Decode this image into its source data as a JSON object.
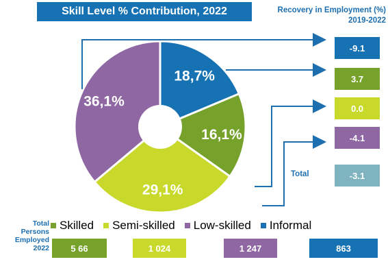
{
  "title": "Skill Level % Contribution, 2022",
  "recovery_title_line1": "Recovery in Employment (%)",
  "recovery_title_line2": "2019-2022",
  "total_label": "Total",
  "persons_label_lines": [
    "Total",
    "Persons",
    "Employed",
    "2022"
  ],
  "colors": {
    "informal": "#1672b3",
    "skilled": "#76a22b",
    "semi_skilled": "#c9d92b",
    "low_skilled": "#8f67a3",
    "total": "#7fb3bf",
    "title_bg": "#1672b3",
    "arrow": "#1d6fb0"
  },
  "chart_data": {
    "type": "pie",
    "donut": true,
    "title": "Skill Level % Contribution, 2022",
    "slices": [
      {
        "name": "Informal",
        "value": 18.7,
        "label": "18,7%",
        "color": "#1672b3"
      },
      {
        "name": "Skilled",
        "value": 16.1,
        "label": "16,1%",
        "color": "#76a22b"
      },
      {
        "name": "Semi-skilled",
        "value": 29.1,
        "label": "29,1%",
        "color": "#c9d92b"
      },
      {
        "name": "Low-skilled",
        "value": 36.1,
        "label": "36,1%",
        "color": "#8f67a3"
      }
    ],
    "recovery_in_employment": [
      {
        "name": "Informal",
        "value": -9.1,
        "label": "-9.1",
        "color": "#1672b3"
      },
      {
        "name": "Skilled",
        "value": 3.7,
        "label": "3.7",
        "color": "#76a22b"
      },
      {
        "name": "Semi-skilled",
        "value": 0.0,
        "label": "0.0",
        "color": "#c9d92b"
      },
      {
        "name": "Low-skilled",
        "value": -4.1,
        "label": "-4.1",
        "color": "#8f67a3"
      },
      {
        "name": "Total",
        "value": -3.1,
        "label": "-3.1",
        "color": "#7fb3bf"
      }
    ],
    "legend": [
      "Skilled",
      "Semi-skilled",
      "Low-skilled",
      "Informal"
    ],
    "persons_employed_2022": [
      {
        "name": "Skilled",
        "label": "5 66",
        "color": "#76a22b"
      },
      {
        "name": "Semi-skilled",
        "label": "1 024",
        "color": "#c9d92b"
      },
      {
        "name": "Low-skilled",
        "label": "1 247",
        "color": "#8f67a3"
      },
      {
        "name": "Informal",
        "label": "863",
        "color": "#1672b3"
      }
    ]
  }
}
